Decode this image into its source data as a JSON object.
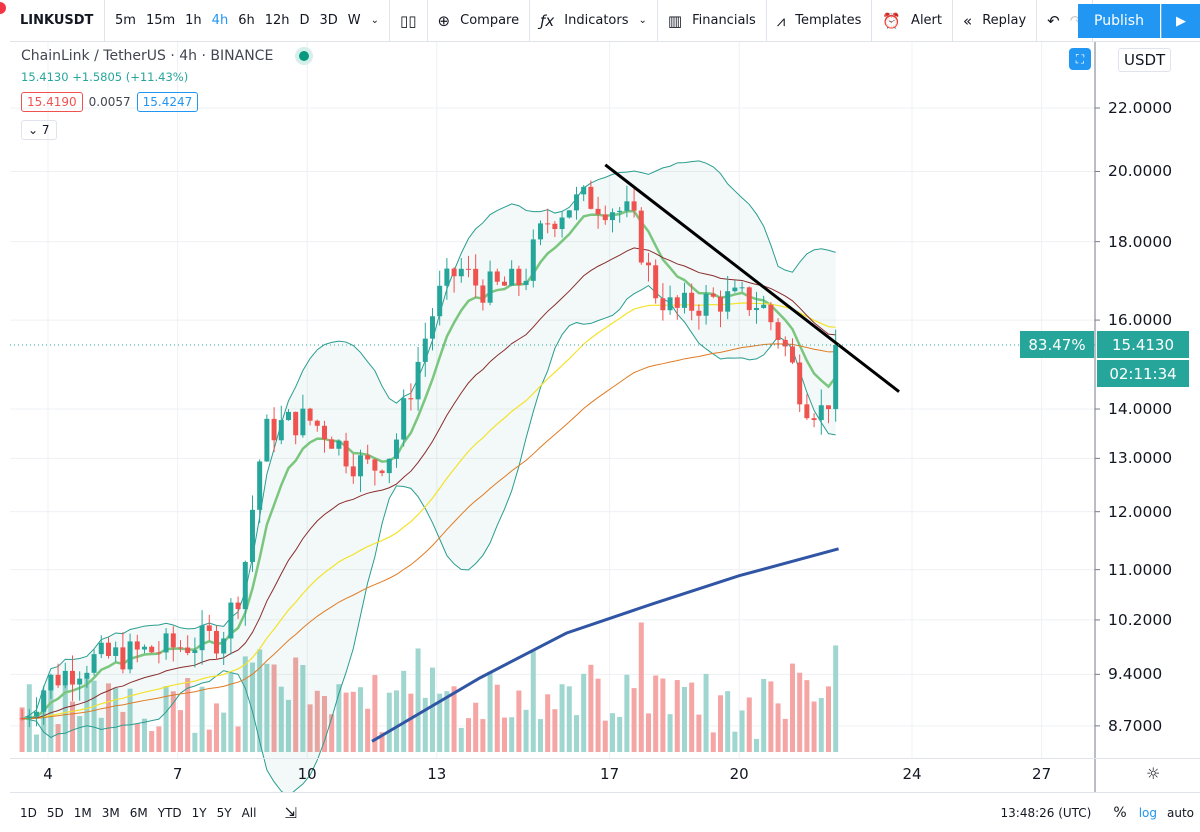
{
  "toolbar": {
    "symbol": "LINKUSDT",
    "intervals": [
      "5m",
      "15m",
      "1h",
      "4h",
      "6h",
      "12h",
      "D",
      "3D",
      "W"
    ],
    "active_interval": "4h",
    "compare": "Compare",
    "indicators": "Indicators",
    "financials": "Financials",
    "templates": "Templates",
    "alert": "Alert",
    "replay": "Replay",
    "publish": "Publish"
  },
  "legend": {
    "title": "ChainLink / TetherUS · 4h · BINANCE",
    "price_line": "15.4130 +1.5805 (+11.43%)",
    "bid": "15.4190",
    "spread": "0.0057",
    "ask": "15.4247",
    "indicator_count": "7"
  },
  "price_axis": {
    "currency": "USDT",
    "current_price": "15.4130",
    "percent_label": "83.47%",
    "countdown": "02:11:34"
  },
  "bottom": {
    "ranges": [
      "1D",
      "5D",
      "1M",
      "3M",
      "6M",
      "YTD",
      "1Y",
      "5Y",
      "All"
    ],
    "time": "13:48:26 (UTC)",
    "percent": "%",
    "log": "log",
    "auto": "auto"
  },
  "colors": {
    "up": "#26a69a",
    "down": "#ef5350",
    "accent": "#2196f3",
    "ma200": "#2f55a4",
    "bb": "#2a9d8f"
  },
  "chart_data": {
    "type": "candlestick",
    "scale": "log",
    "ylim": [
      8.4,
      24
    ],
    "y_ticks": [
      "22.0000",
      "20.0000",
      "18.0000",
      "16.0000",
      "14.0000",
      "13.0000",
      "12.0000",
      "11.0000",
      "10.2000",
      "9.4000",
      "8.7000"
    ],
    "x_ticks": [
      "4",
      "7",
      "10",
      "13",
      "17",
      "20",
      "24",
      "27"
    ],
    "x_range_days": [
      3.25,
      28.3
    ],
    "close_path_day": [
      3.4,
      4,
      5,
      6,
      7,
      8,
      8.5,
      9,
      9.5,
      10,
      10.5,
      11,
      11.5,
      12,
      12.5,
      13,
      13.5,
      14,
      14.5,
      15,
      15.5,
      16,
      16.5,
      17,
      17.5,
      18,
      18.5,
      19,
      19.5,
      20,
      20.5,
      21,
      21.5,
      22,
      22.3
    ],
    "close_path_value": [
      8.8,
      9.3,
      9.6,
      9.7,
      9.8,
      9.95,
      10.8,
      13.5,
      13.7,
      13.8,
      13.5,
      13.0,
      12.8,
      13.2,
      14.8,
      16.5,
      17.3,
      16.8,
      16.8,
      17.0,
      18.5,
      19.0,
      19.2,
      19.0,
      18.7,
      16.8,
      16.2,
      16.4,
      16.5,
      16.5,
      16.4,
      15.5,
      14.2,
      13.9,
      15.41
    ],
    "ma200_day": [
      11.5,
      14,
      16,
      18,
      20,
      22.3
    ],
    "ma200_value": [
      8.5,
      9.35,
      10.0,
      10.45,
      10.9,
      11.35
    ],
    "trendline": {
      "from": [
        16.9,
        20.2
      ],
      "to": [
        23.7,
        14.37
      ]
    },
    "current_price": 15.413
  }
}
